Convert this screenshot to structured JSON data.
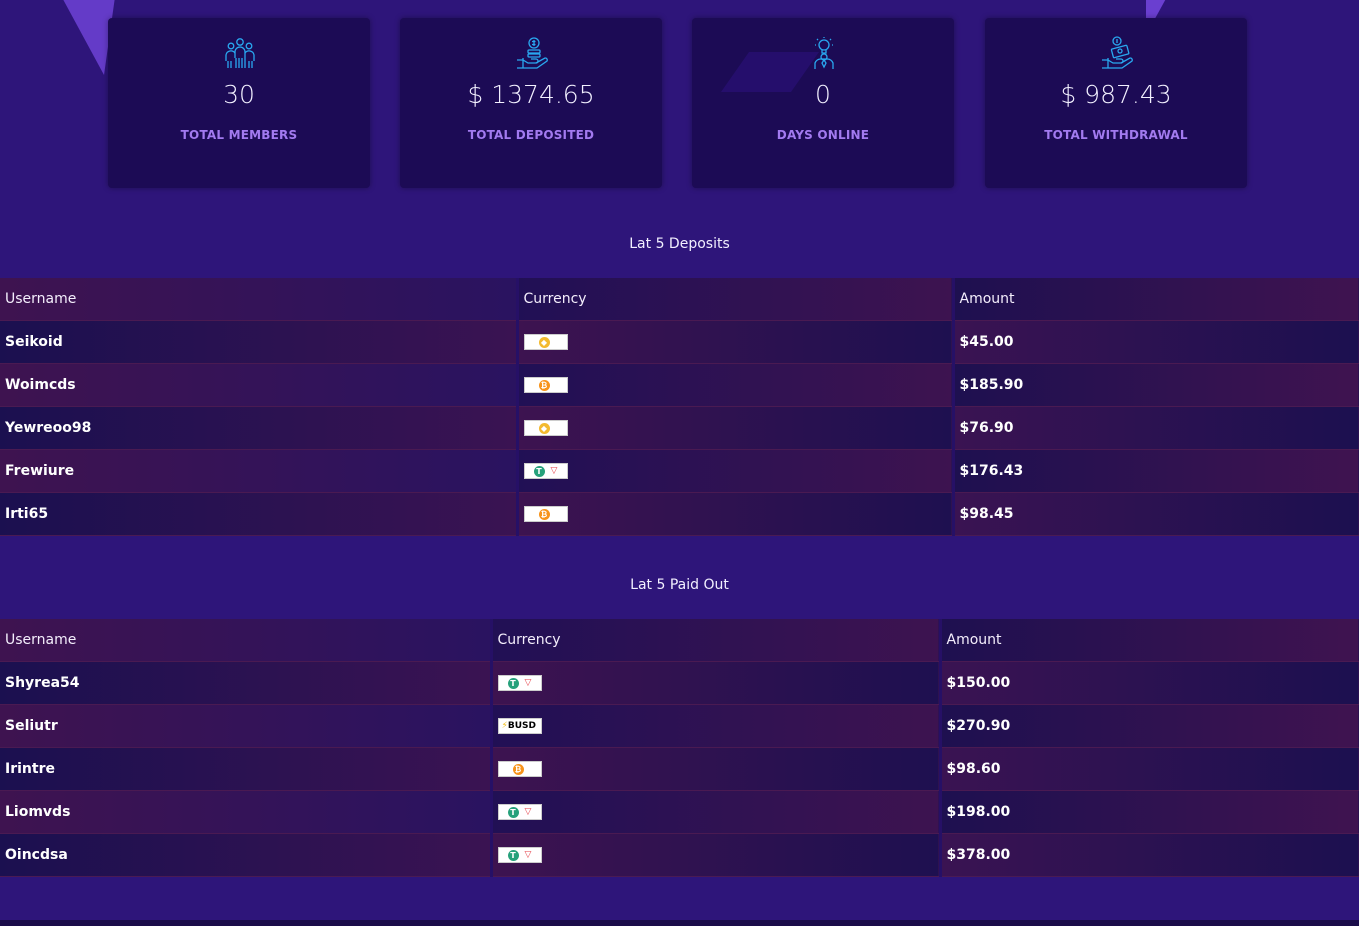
{
  "stats": [
    {
      "icon": "users-group-icon",
      "value": "30",
      "label": "TOTAL MEMBERS"
    },
    {
      "icon": "hand-coins-icon",
      "value": "$ 1374.65",
      "label": "TOTAL DEPOSITED"
    },
    {
      "icon": "person-idea-icon",
      "value": "0",
      "label": "DAYS ONLINE"
    },
    {
      "icon": "hand-money-icon",
      "value": "$ 987.43",
      "label": "TOTAL WITHDRAWAL"
    }
  ],
  "deposits": {
    "title": "Lat 5 Deposits",
    "headers": [
      "Username",
      "Currency",
      "Amount"
    ],
    "rows": [
      {
        "username": "Seikoid",
        "currency": "bnb-icon",
        "amount": "$45.00"
      },
      {
        "username": "Woimcds",
        "currency": "bitcoin-icon",
        "amount": "$185.90"
      },
      {
        "username": "Yewreoo98",
        "currency": "bnb-icon",
        "amount": "$76.90"
      },
      {
        "username": "Frewiure",
        "currency": "usdt-trc20-icon",
        "amount": "$176.43"
      },
      {
        "username": "Irti65",
        "currency": "bitcoin-icon",
        "amount": "$98.45"
      }
    ]
  },
  "payouts": {
    "title": "Lat 5 Paid Out",
    "headers": [
      "Username",
      "Currency",
      "Amount"
    ],
    "rows": [
      {
        "username": "Shyrea54",
        "currency": "usdt-trc20-icon",
        "amount": "$150.00"
      },
      {
        "username": "Seliutr",
        "currency": "busd-icon",
        "busd_label": "BUSD",
        "amount": "$270.90"
      },
      {
        "username": "Irintre",
        "currency": "bitcoin-icon",
        "amount": "$98.60"
      },
      {
        "username": "Liomvds",
        "currency": "usdt-trc20-icon",
        "amount": "$198.00"
      },
      {
        "username": "Oincdsa",
        "currency": "usdt-trc20-icon",
        "amount": "$378.00"
      }
    ]
  },
  "colors": {
    "background": "#2e157a",
    "card": "#1c0b55",
    "accent_label": "#a27af0",
    "icon": "#29a8f0"
  }
}
